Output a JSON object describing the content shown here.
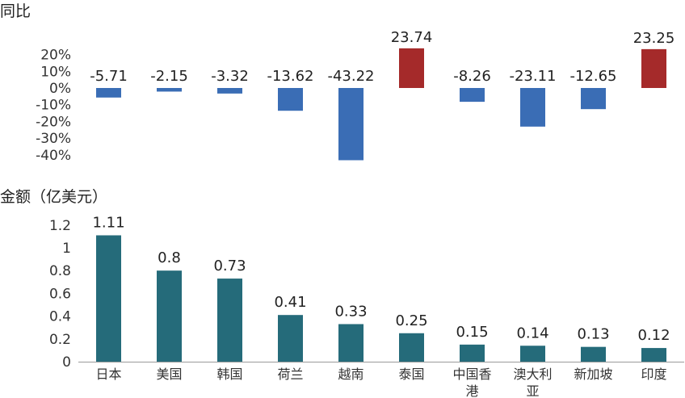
{
  "chart_data": [
    {
      "type": "bar",
      "title": "同比",
      "categories": [
        "日本",
        "美国",
        "韩国",
        "荷兰",
        "越南",
        "泰国",
        "中国香港",
        "澳大利亚",
        "新加坡",
        "印度"
      ],
      "values": [
        -5.71,
        -2.15,
        -3.32,
        -13.62,
        -43.22,
        23.74,
        -8.26,
        -23.11,
        -12.65,
        23.25
      ],
      "ylim": [
        -40,
        20
      ],
      "yticks": [
        "20%",
        "10%",
        "0%",
        "-10%",
        "-20%",
        "-30%",
        "-40%"
      ],
      "grid": false,
      "colors": {
        "negative": "#3a6db5",
        "positive": "#a52a2a"
      }
    },
    {
      "type": "bar",
      "title": "金额（亿美元）",
      "categories": [
        "日本",
        "美国",
        "韩国",
        "荷兰",
        "越南",
        "泰国",
        "中国香港",
        "澳大利亚",
        "新加坡",
        "印度"
      ],
      "values": [
        1.11,
        0.8,
        0.73,
        0.41,
        0.33,
        0.25,
        0.15,
        0.14,
        0.13,
        0.12
      ],
      "ylim": [
        0,
        1.2
      ],
      "yticks": [
        "1.2",
        "1",
        "0.8",
        "0.6",
        "0.4",
        "0.2",
        "0"
      ],
      "grid": false,
      "colors": {
        "bar": "#256b7a"
      }
    }
  ],
  "category_lines": [
    [
      "日本"
    ],
    [
      "美国"
    ],
    [
      "韩国"
    ],
    [
      "荷兰"
    ],
    [
      "越南"
    ],
    [
      "泰国"
    ],
    [
      "中国香",
      "港"
    ],
    [
      "澳大利",
      "亚"
    ],
    [
      "新加坡"
    ],
    [
      "印度"
    ]
  ]
}
